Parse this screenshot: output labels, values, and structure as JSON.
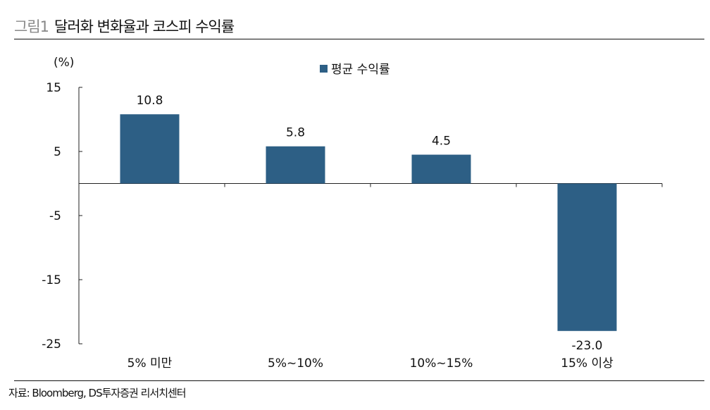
{
  "header": {
    "figure_label": "그림1",
    "title": "달러화 변화율과 코스피 수익률"
  },
  "source": "자료: Bloomberg, DS투자증권 리서치센터",
  "chart_data": {
    "type": "bar",
    "title": "",
    "ylabel": "(%)",
    "xlabel": "",
    "categories": [
      "5% 미만",
      "5%~10%",
      "10%~15%",
      "15% 이상"
    ],
    "series": [
      {
        "name": "평균 수익률",
        "values": [
          10.8,
          5.8,
          4.5,
          -23.0
        ],
        "color": "#2d5f85"
      }
    ],
    "data_labels": [
      "10.8",
      "5.8",
      "4.5",
      "-23.0"
    ],
    "ylim": [
      -25,
      15
    ],
    "yticks": [
      15,
      5,
      -5,
      -15,
      -25
    ],
    "grid": false,
    "legend": "top-center"
  }
}
